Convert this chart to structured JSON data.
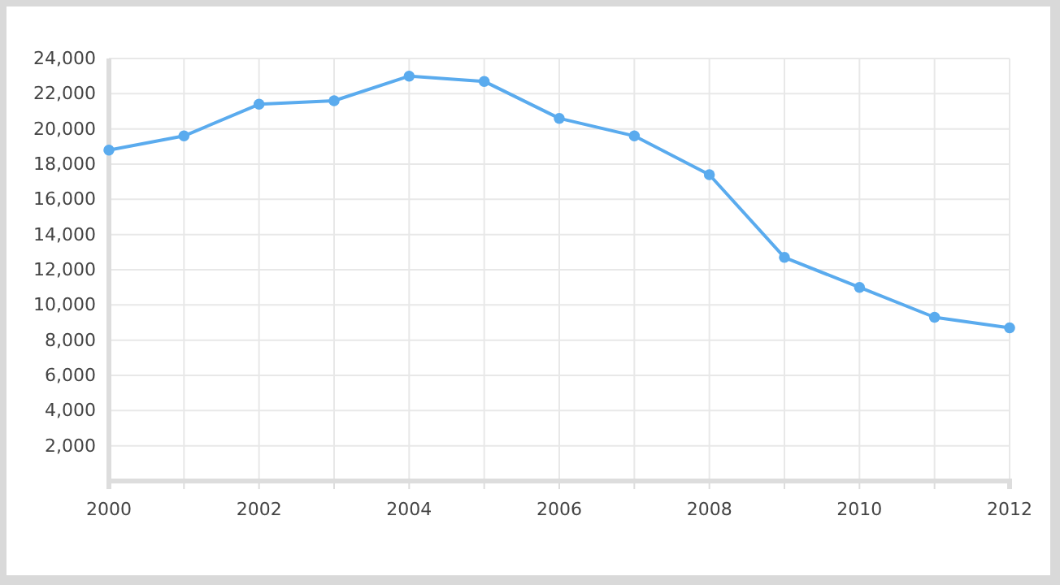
{
  "chart_data": {
    "type": "line",
    "x": [
      2000,
      2001,
      2002,
      2003,
      2004,
      2005,
      2006,
      2007,
      2008,
      2009,
      2010,
      2011,
      2012
    ],
    "series": [
      {
        "color": "#5aabee",
        "values": [
          18800,
          19600,
          21400,
          21600,
          23000,
          22700,
          20600,
          19600,
          17400,
          12700,
          11000,
          9300,
          8700
        ]
      }
    ],
    "xlim": [
      2000,
      2012
    ],
    "xticks": [
      2000,
      {
        "value": 2001,
        "label": null
      },
      2002,
      {
        "value": 2003,
        "label": null
      },
      2004,
      {
        "value": 2005,
        "label": null
      },
      2006,
      {
        "value": 2007,
        "label": null
      },
      2008,
      {
        "value": 2009,
        "label": null
      },
      2010,
      {
        "value": 2011,
        "label": null
      },
      2012
    ],
    "ylim": [
      0,
      24000
    ],
    "yticks": [
      {
        "value": 2000,
        "label": "2,000"
      },
      {
        "value": 4000,
        "label": "4,000"
      },
      {
        "value": 6000,
        "label": "6,000"
      },
      {
        "value": 8000,
        "label": "8,000"
      },
      {
        "value": 10000,
        "label": "10,000"
      },
      {
        "value": 12000,
        "label": "12,000"
      },
      {
        "value": 14000,
        "label": "14,000"
      },
      {
        "value": 16000,
        "label": "16,000"
      },
      {
        "value": 18000,
        "label": "18,000"
      },
      {
        "value": 20000,
        "label": "20,000"
      },
      {
        "value": 22000,
        "label": "22,000"
      },
      {
        "value": 24000,
        "label": "24,000"
      }
    ],
    "grid": true,
    "marker": "circle",
    "line_style": "solid"
  }
}
